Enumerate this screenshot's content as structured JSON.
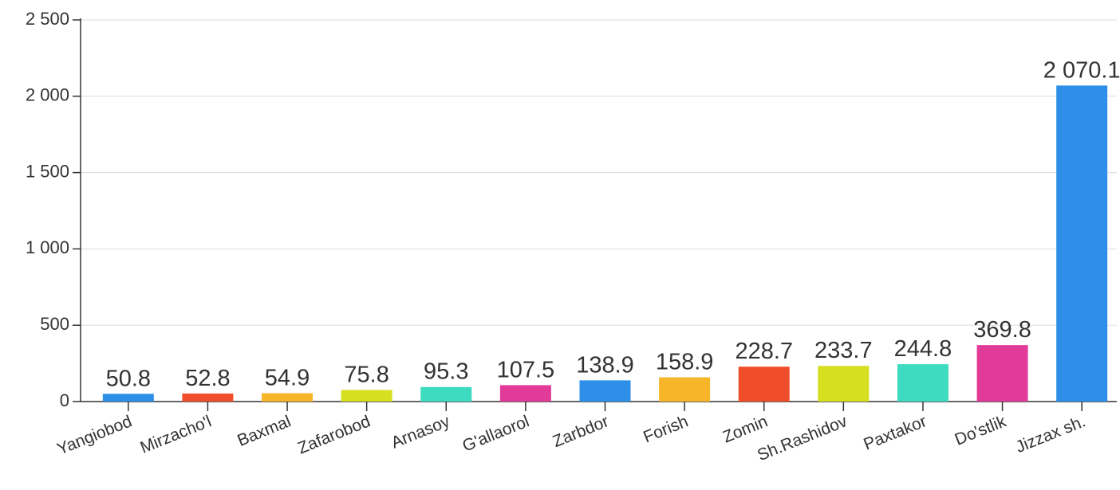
{
  "chart_data": {
    "type": "bar",
    "categories": [
      "Yangiobod",
      "Mirzacho'l",
      "Baxmal",
      "Zafarobod",
      "Arnasoy",
      "G'allaorol",
      "Zarbdor",
      "Forish",
      "Zomin",
      "Sh.Rashidov",
      "Paxtakor",
      "Do'stlik",
      "Jizzax sh."
    ],
    "values": [
      50.8,
      52.8,
      54.9,
      75.8,
      95.3,
      107.5,
      138.9,
      158.9,
      228.7,
      233.7,
      244.8,
      369.8,
      2070.1
    ],
    "value_labels": [
      "50.8",
      "52.8",
      "54.9",
      "75.8",
      "95.3",
      "107.5",
      "138.9",
      "158.9",
      "228.7",
      "233.7",
      "244.8",
      "369.8",
      "2 070.1"
    ],
    "colors": [
      "#2d8fe8",
      "#f04e2b",
      "#f7b52a",
      "#d6df20",
      "#3ddbc0",
      "#e23a98",
      "#2d8fe8",
      "#f7b52a",
      "#f04e2b",
      "#d6df20",
      "#3ddbc0",
      "#e23a98",
      "#2d8fe8"
    ],
    "ylim": [
      0,
      2500
    ],
    "yticks": [
      0,
      500,
      {
        "value": 1000,
        "label": "1 000"
      },
      {
        "value": 1500,
        "label": "1 500"
      },
      {
        "value": 2000,
        "label": "2 000"
      },
      {
        "value": 2500,
        "label": "2 500"
      }
    ],
    "grid": true
  }
}
